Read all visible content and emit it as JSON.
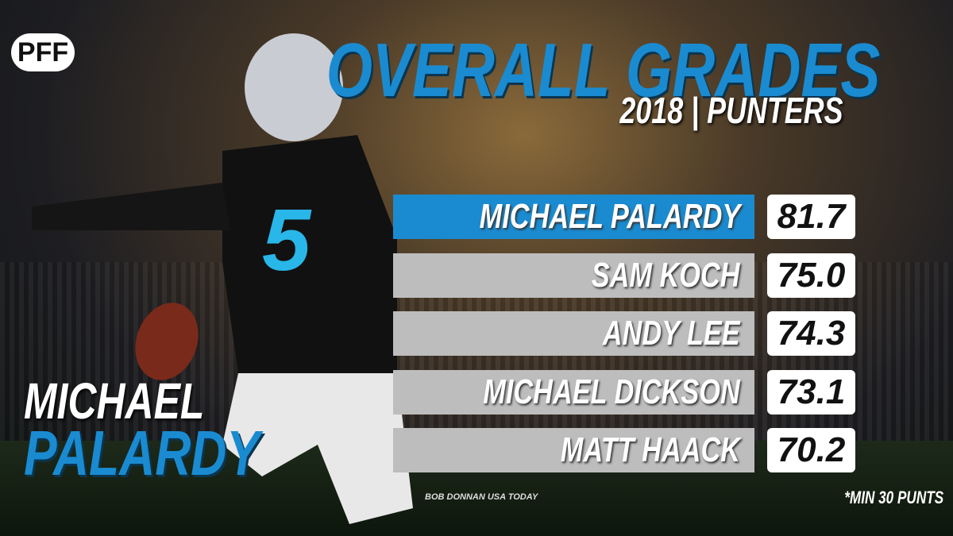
{
  "logo": "PFF",
  "header": {
    "title": "OVERALL GRADES",
    "subtitle": "2018 | PUNTERS"
  },
  "player": {
    "first_name": "MICHAEL",
    "last_name": "PALARDY"
  },
  "table": {
    "rows": [
      [
        "MICHAEL PALARDY",
        "81.7"
      ],
      [
        "SAM KOCH",
        "75.0"
      ],
      [
        "ANDY LEE",
        "74.3"
      ],
      [
        "MICHAEL DICKSON",
        "73.1"
      ],
      [
        "MATT HAACK",
        "70.2"
      ]
    ]
  },
  "photo_credit": "BOB DONNAN USA TODAY",
  "footnote": "*MIN 30 PUNTS"
}
